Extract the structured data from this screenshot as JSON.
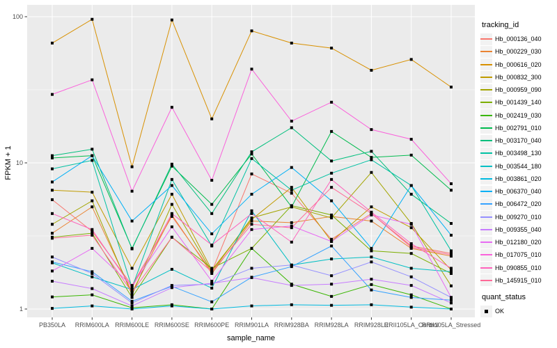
{
  "chart_data": {
    "type": "line",
    "title": "",
    "xlabel": "sample_name",
    "ylabel": "FPKM + 1",
    "y_scale": "log10",
    "ylim": [
      1,
      100
    ],
    "y_major_ticks": [
      1,
      10,
      100
    ],
    "y_minor_ticks": [
      3.162,
      31.62
    ],
    "grid": "white major and minor gridlines on gray panel",
    "panel_bg": "#EBEBEB",
    "point_color": "#000000",
    "point_shape": "small-black-square",
    "legend_position": "right",
    "legend_title_tracking": "tracking_id",
    "legend_title_quant": "quant_status",
    "quant_status_items": [
      {
        "label": "OK",
        "marker": "black-square"
      }
    ],
    "categories": [
      "PB350LA",
      "RRIM600LA",
      "RRIM600LE",
      "RRIM600SE",
      "RRIM600PE",
      "RRIM901LA",
      "RRIM928BA",
      "RRIM928LA",
      "RRIM928LE",
      "RRII105LA_Control",
      "RRII105LA_Stressed"
    ],
    "series": [
      {
        "name": "Hb_000136_040",
        "color": "#F8766D",
        "values": [
          5.6,
          3.4,
          1.45,
          4.3,
          1.8,
          8.4,
          6.2,
          3.0,
          4.5,
          2.7,
          2.4
        ]
      },
      {
        "name": "Hb_000229_030",
        "color": "#EA8331",
        "values": [
          3.3,
          5.0,
          1.3,
          4.4,
          1.75,
          4.0,
          3.9,
          4.3,
          4.0,
          2.6,
          2.3
        ]
      },
      {
        "name": "Hb_000616_020",
        "color": "#D89000",
        "values": [
          66,
          96,
          9.4,
          95,
          20,
          80,
          66,
          61,
          43,
          51,
          33
        ]
      },
      {
        "name": "Hb_000832_300",
        "color": "#C09B00",
        "values": [
          6.5,
          6.3,
          1.9,
          6.1,
          1.85,
          4.1,
          6.8,
          2.9,
          5.0,
          3.6,
          1.85
        ]
      },
      {
        "name": "Hb_000959_090",
        "color": "#A3A500",
        "values": [
          3.8,
          5.5,
          1.25,
          5.2,
          1.8,
          4.2,
          5.0,
          4.2,
          8.6,
          3.85,
          1.44
        ]
      },
      {
        "name": "Hb_001439_140",
        "color": "#7CAE00",
        "values": [
          3.1,
          3.3,
          1.2,
          3.1,
          1.9,
          2.6,
          5.1,
          4.4,
          2.5,
          2.4,
          1.75
        ]
      },
      {
        "name": "Hb_002419_030",
        "color": "#39B600",
        "values": [
          1.21,
          1.25,
          1.02,
          1.07,
          1.0,
          2.6,
          1.48,
          1.22,
          1.47,
          1.25,
          1.0
        ]
      },
      {
        "name": "Hb_002791_010",
        "color": "#00BB4E",
        "values": [
          10.8,
          11.2,
          2.6,
          9.5,
          5.2,
          11.5,
          5.0,
          16.4,
          10.9,
          11.3,
          6.5
        ]
      },
      {
        "name": "Hb_003170_040",
        "color": "#00BF7D",
        "values": [
          11.2,
          12.4,
          2.58,
          9.8,
          4.5,
          11.9,
          17.4,
          10.3,
          12.0,
          6.1,
          3.85
        ]
      },
      {
        "name": "Hb_003498_130",
        "color": "#00C1A3",
        "values": [
          9.1,
          10.4,
          1.4,
          7.7,
          2.7,
          10.7,
          6.5,
          8.5,
          10.5,
          7.0,
          2.5
        ]
      },
      {
        "name": "Hb_003544_180",
        "color": "#00BFC4",
        "values": [
          2.07,
          1.66,
          1.36,
          1.87,
          1.39,
          4.7,
          2.0,
          2.2,
          2.27,
          1.9,
          1.8
        ]
      },
      {
        "name": "Hb_003861_020",
        "color": "#00BAE0",
        "values": [
          1.01,
          1.05,
          1.0,
          1.05,
          1.0,
          1.05,
          1.07,
          1.06,
          1.07,
          1.03,
          1.0
        ]
      },
      {
        "name": "Hb_006370_040",
        "color": "#00B0F6",
        "values": [
          7.4,
          11.2,
          4.0,
          7.0,
          3.27,
          6.1,
          9.3,
          5.5,
          2.6,
          7.0,
          3.2
        ]
      },
      {
        "name": "Hb_006472_020",
        "color": "#35A2FF",
        "values": [
          2.1,
          1.8,
          1.13,
          1.43,
          1.12,
          1.65,
          1.95,
          2.7,
          1.35,
          1.2,
          1.15
        ]
      },
      {
        "name": "Hb_009270_010",
        "color": "#9590FF",
        "values": [
          2.27,
          1.75,
          1.1,
          1.45,
          1.48,
          1.9,
          2.0,
          1.69,
          2.1,
          1.66,
          1.2
        ]
      },
      {
        "name": "Hb_009355_040",
        "color": "#C77CFF",
        "values": [
          1.55,
          1.38,
          1.05,
          1.4,
          1.5,
          1.64,
          1.45,
          1.48,
          1.6,
          1.45,
          1.1
        ]
      },
      {
        "name": "Hb_012180_020",
        "color": "#E76BF3",
        "values": [
          1.82,
          2.6,
          1.44,
          3.65,
          1.55,
          3.5,
          3.7,
          2.9,
          4.4,
          3.8,
          1.2
        ]
      },
      {
        "name": "Hb_017075_010",
        "color": "#FA62DB",
        "values": [
          29.4,
          37,
          6.4,
          24,
          7.6,
          43.8,
          19.3,
          26,
          16.9,
          14.5,
          7.2
        ]
      },
      {
        "name": "Hb_090855_010",
        "color": "#FF62BC",
        "values": [
          4.5,
          3.5,
          1.4,
          4.5,
          2.74,
          4.5,
          2.87,
          7.7,
          4.6,
          2.8,
          1.9
        ]
      },
      {
        "name": "Hb_145915_010",
        "color": "#FF6A98",
        "values": [
          3.05,
          3.2,
          1.3,
          3.1,
          1.8,
          3.8,
          3.6,
          6.8,
          4.5,
          2.65,
          2.35
        ]
      }
    ]
  }
}
